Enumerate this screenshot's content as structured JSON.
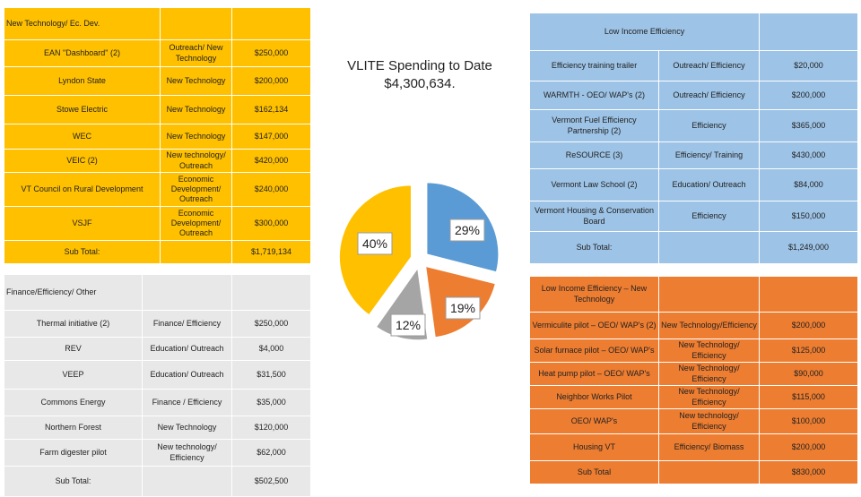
{
  "colors": {
    "yellow": "#ffc000",
    "gray": "#e8e8e8",
    "blue": "#9dc3e6",
    "orange": "#ed7d31",
    "pie_blue": "#5b9bd5",
    "pie_gray": "#a5a5a5"
  },
  "chart_data": {
    "type": "pie",
    "title": "VLITE Spending to Date $4,300,634.",
    "title_line1": "VLITE Spending to Date",
    "title_line2": "$4,300,634.",
    "slices": [
      {
        "label": "Low Income Efficiency",
        "value": 29,
        "display": "29%",
        "color": "#5b9bd5"
      },
      {
        "label": "Low Income Efficiency – New Technology",
        "value": 19,
        "display": "19%",
        "color": "#ed7d31"
      },
      {
        "label": "Finance/Efficiency/ Other",
        "value": 12,
        "display": "12%",
        "color": "#a5a5a5"
      },
      {
        "label": "New Technology/ Ec. Dev.",
        "value": 40,
        "display": "40%",
        "color": "#ffc000"
      }
    ]
  },
  "new_tech": {
    "header": "New Technology/ Ec. Dev.",
    "rows": [
      {
        "name": "EAN \"Dashboard\" (2)",
        "type": "Outreach/ New Technology",
        "amount": "$250,000"
      },
      {
        "name": "Lyndon State",
        "type": "New Technology",
        "amount": "$200,000"
      },
      {
        "name": "Stowe Electric",
        "type": "New Technology",
        "amount": "$162,134"
      },
      {
        "name": "WEC",
        "type": "New Technology",
        "amount": "$147,000"
      },
      {
        "name": "VEIC (2)",
        "type": "New technology/ Outreach",
        "amount": "$420,000"
      },
      {
        "name": "VT Council on Rural Development",
        "type": "Economic Development/ Outreach",
        "amount": "$240,000"
      },
      {
        "name": "VSJF",
        "type": "Economic Development/ Outreach",
        "amount": "$300,000"
      }
    ],
    "subtotal_label": "Sub Total:",
    "subtotal_value": "$1,719,134"
  },
  "finance": {
    "header": "Finance/Efficiency/ Other",
    "rows": [
      {
        "name": "Thermal initiative (2)",
        "type": "Finance/ Efficiency",
        "amount": "$250,000"
      },
      {
        "name": "REV",
        "type": "Education/ Outreach",
        "amount": "$4,000"
      },
      {
        "name": "VEEP",
        "type": "Education/ Outreach",
        "amount": "$31,500"
      },
      {
        "name": "Commons Energy",
        "type": "Finance / Efficiency",
        "amount": "$35,000"
      },
      {
        "name": "Northern Forest",
        "type": "New Technology",
        "amount": "$120,000"
      },
      {
        "name": "Farm digester pilot",
        "type": "New technology/ Efficiency",
        "amount": "$62,000"
      }
    ],
    "subtotal_label": "Sub Total:",
    "subtotal_value": "$502,500"
  },
  "low_income": {
    "header": "Low Income Efficiency",
    "rows": [
      {
        "name": "Efficiency training trailer",
        "type": "Outreach/ Efficiency",
        "amount": "$20,000"
      },
      {
        "name": "WARMTH - OEO/ WAP's (2)",
        "type": "Outreach/ Efficiency",
        "amount": "$200,000"
      },
      {
        "name": "Vermont Fuel Efficiency Partnership (2)",
        "type": "Efficiency",
        "amount": "$365,000"
      },
      {
        "name": "ReSOURCE (3)",
        "type": "Efficiency/ Training",
        "amount": "$430,000"
      },
      {
        "name": "Vermont Law School (2)",
        "type": "Education/ Outreach",
        "amount": "$84,000"
      },
      {
        "name": "Vermont Housing & Conservation Board",
        "type": "Efficiency",
        "amount": "$150,000"
      }
    ],
    "subtotal_label": "Sub Total:",
    "subtotal_value": "$1,249,000"
  },
  "low_income_nt": {
    "header": "Low Income Efficiency – New Technology",
    "rows": [
      {
        "name": "Vermiculite pilot – OEO/ WAP's (2)",
        "type": "New Technology/Efficiency",
        "amount": "$200,000"
      },
      {
        "name": "Solar furnace pilot – OEO/ WAP's",
        "type": "New Technology/ Efficiency",
        "amount": "$125,000"
      },
      {
        "name": "Heat pump pilot – OEO/ WAP's",
        "type": "New Technology/ Efficiency",
        "amount": "$90,000"
      },
      {
        "name": "Neighbor Works Pilot",
        "type": "New Technology/ Efficiency",
        "amount": "$115,000"
      },
      {
        "name": "OEO/ WAP's",
        "type": "New technology/ Efficiency",
        "amount": "$100,000"
      },
      {
        "name": "Housing VT",
        "type": "Efficiency/ Biomass",
        "amount": "$200,000"
      }
    ],
    "subtotal_label": "Sub Total",
    "subtotal_value": "$830,000"
  }
}
